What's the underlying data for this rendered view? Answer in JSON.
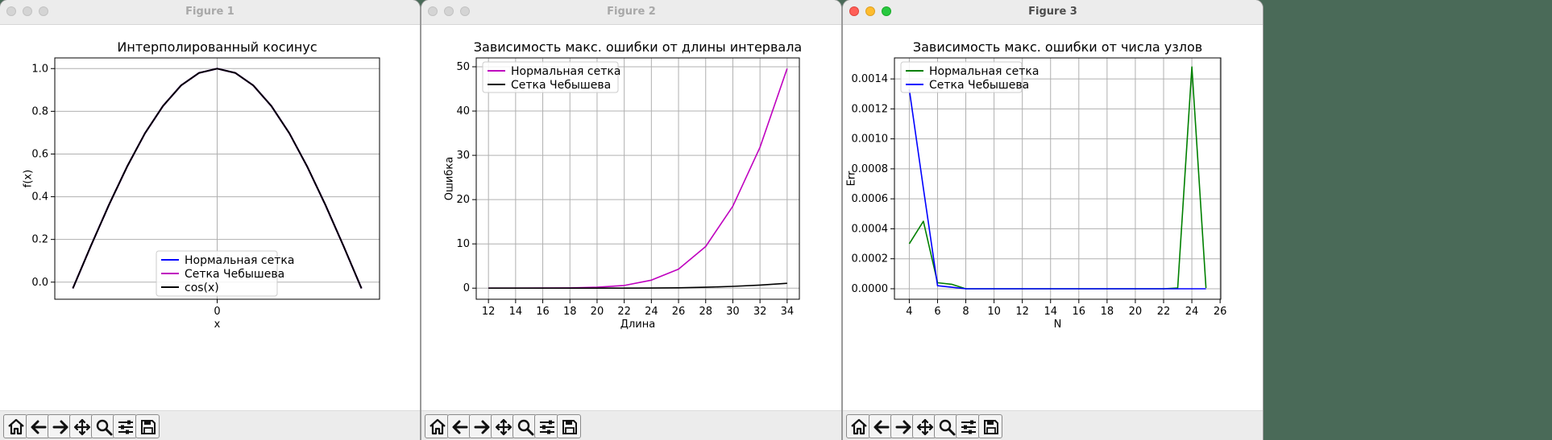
{
  "windows": [
    {
      "title": "Figure 1",
      "active": false,
      "chart_data": {
        "type": "line",
        "title": "Интерполированный косинус",
        "xlabel": "x",
        "ylabel": "f(x)",
        "xlim": [
          -1.8,
          1.8
        ],
        "ylim": [
          -0.08,
          1.05
        ],
        "xticks": [
          0
        ],
        "xtick_labels": [
          "0"
        ],
        "yticks": [
          0.0,
          0.2,
          0.4,
          0.6,
          0.8,
          1.0
        ],
        "ytick_labels": [
          "0.0",
          "0.2",
          "0.4",
          "0.6",
          "0.8",
          "1.0"
        ],
        "grid": true,
        "legend_position": "lower-center",
        "series": [
          {
            "name": "Нормальная сетка",
            "color": "#0000ff",
            "x": [
              -1.6,
              -1.4,
              -1.2,
              -1.0,
              -0.8,
              -0.6,
              -0.4,
              -0.2,
              0,
              0.2,
              0.4,
              0.6,
              0.8,
              1.0,
              1.2,
              1.4,
              1.6
            ],
            "y": [
              -0.029,
              0.17,
              0.362,
              0.54,
              0.697,
              0.825,
              0.921,
              0.98,
              1.0,
              0.98,
              0.921,
              0.825,
              0.697,
              0.54,
              0.362,
              0.17,
              -0.029
            ]
          },
          {
            "name": "Сетка Чебышева",
            "color": "#bf00bf",
            "x": [
              -1.6,
              -1.4,
              -1.2,
              -1.0,
              -0.8,
              -0.6,
              -0.4,
              -0.2,
              0,
              0.2,
              0.4,
              0.6,
              0.8,
              1.0,
              1.2,
              1.4,
              1.6
            ],
            "y": [
              -0.029,
              0.17,
              0.362,
              0.54,
              0.697,
              0.825,
              0.921,
              0.98,
              1.0,
              0.98,
              0.921,
              0.825,
              0.697,
              0.54,
              0.362,
              0.17,
              -0.029
            ]
          },
          {
            "name": "cos(x)",
            "color": "#000000",
            "x": [
              -1.6,
              -1.4,
              -1.2,
              -1.0,
              -0.8,
              -0.6,
              -0.4,
              -0.2,
              0,
              0.2,
              0.4,
              0.6,
              0.8,
              1.0,
              1.2,
              1.4,
              1.6
            ],
            "y": [
              -0.029,
              0.17,
              0.362,
              0.54,
              0.697,
              0.825,
              0.921,
              0.98,
              1.0,
              0.98,
              0.921,
              0.825,
              0.697,
              0.54,
              0.362,
              0.17,
              -0.029
            ]
          }
        ]
      }
    },
    {
      "title": "Figure 2",
      "active": false,
      "chart_data": {
        "type": "line",
        "title": "Зависимость макс. ошибки от длины интервала",
        "xlabel": "Длина",
        "ylabel": "Ошибка",
        "xlim": [
          11.1,
          34.9
        ],
        "ylim": [
          -2.5,
          52
        ],
        "xticks": [
          12,
          14,
          16,
          18,
          20,
          22,
          24,
          26,
          28,
          30,
          32,
          34
        ],
        "xtick_labels": [
          "12",
          "14",
          "16",
          "18",
          "20",
          "22",
          "24",
          "26",
          "28",
          "30",
          "32",
          "34"
        ],
        "yticks": [
          0,
          10,
          20,
          30,
          40,
          50
        ],
        "ytick_labels": [
          "0",
          "10",
          "20",
          "30",
          "40",
          "50"
        ],
        "grid": true,
        "legend_position": "upper-left",
        "series": [
          {
            "name": "Нормальная сетка",
            "color": "#bf00bf",
            "x": [
              12,
              14,
              16,
              18,
              20,
              22,
              24,
              26,
              28,
              30,
              32,
              34
            ],
            "y": [
              0.0,
              0.0,
              0.02,
              0.06,
              0.2,
              0.6,
              1.8,
              4.3,
              9.4,
              18.5,
              31.8,
              49.6
            ]
          },
          {
            "name": "Сетка Чебышева",
            "color": "#000000",
            "x": [
              12,
              14,
              16,
              18,
              20,
              22,
              24,
              26,
              28,
              30,
              32,
              34
            ],
            "y": [
              0.0,
              0.0,
              0.0,
              0.0,
              0.0,
              0.01,
              0.03,
              0.08,
              0.2,
              0.4,
              0.7,
              1.1
            ]
          }
        ]
      }
    },
    {
      "title": "Figure 3",
      "active": true,
      "chart_data": {
        "type": "line",
        "title": "Зависимость макс. ошибки от числа узлов",
        "xlabel": "N",
        "ylabel": "Err",
        "xlim": [
          2.95,
          26.05
        ],
        "ylim": [
          -7e-05,
          0.00154
        ],
        "xticks": [
          4,
          6,
          8,
          10,
          12,
          14,
          16,
          18,
          20,
          22,
          24,
          26
        ],
        "xtick_labels": [
          "4",
          "6",
          "8",
          "10",
          "12",
          "14",
          "16",
          "18",
          "20",
          "22",
          "24",
          "26"
        ],
        "yticks": [
          0,
          0.0002,
          0.0004,
          0.0006,
          0.0008,
          0.001,
          0.0012,
          0.0014
        ],
        "ytick_labels": [
          "0.0000",
          "0.0002",
          "0.0004",
          "0.0006",
          "0.0008",
          "0.0010",
          "0.0012",
          "0.0014"
        ],
        "grid": true,
        "legend_position": "upper-left",
        "series": [
          {
            "name": "Нормальная сетка",
            "color": "#008000",
            "x": [
              4,
              5,
              6,
              7,
              8,
              9,
              10,
              11,
              12,
              13,
              14,
              15,
              16,
              17,
              18,
              19,
              20,
              21,
              22,
              23,
              24,
              25
            ],
            "y": [
              0.0003,
              0.00045,
              4e-05,
              3e-05,
              0.0,
              0.0,
              0.0,
              0.0,
              0.0,
              0.0,
              0.0,
              0.0,
              0.0,
              0.0,
              0.0,
              0.0,
              0.0,
              0.0,
              0.0,
              5e-06,
              0.00148,
              5e-06
            ]
          },
          {
            "name": "Сетка Чебышева",
            "color": "#0000ff",
            "x": [
              4,
              5,
              6,
              7,
              8,
              9,
              10,
              11,
              12,
              13,
              14,
              15,
              16,
              17,
              18,
              19,
              20,
              21,
              22,
              23,
              24,
              25
            ],
            "y": [
              0.00133,
              0.00067,
              2e-05,
              1e-05,
              0.0,
              0.0,
              0.0,
              0.0,
              0.0,
              0.0,
              0.0,
              0.0,
              0.0,
              0.0,
              0.0,
              0.0,
              0.0,
              0.0,
              0.0,
              0.0,
              0.0,
              0.0
            ]
          }
        ]
      }
    }
  ],
  "toolbar": {
    "icons": [
      "home-icon",
      "back-arrow-icon",
      "forward-arrow-icon",
      "pan-move-icon",
      "zoom-magnifier-icon",
      "configure-subplots-icon",
      "save-disk-icon"
    ]
  }
}
